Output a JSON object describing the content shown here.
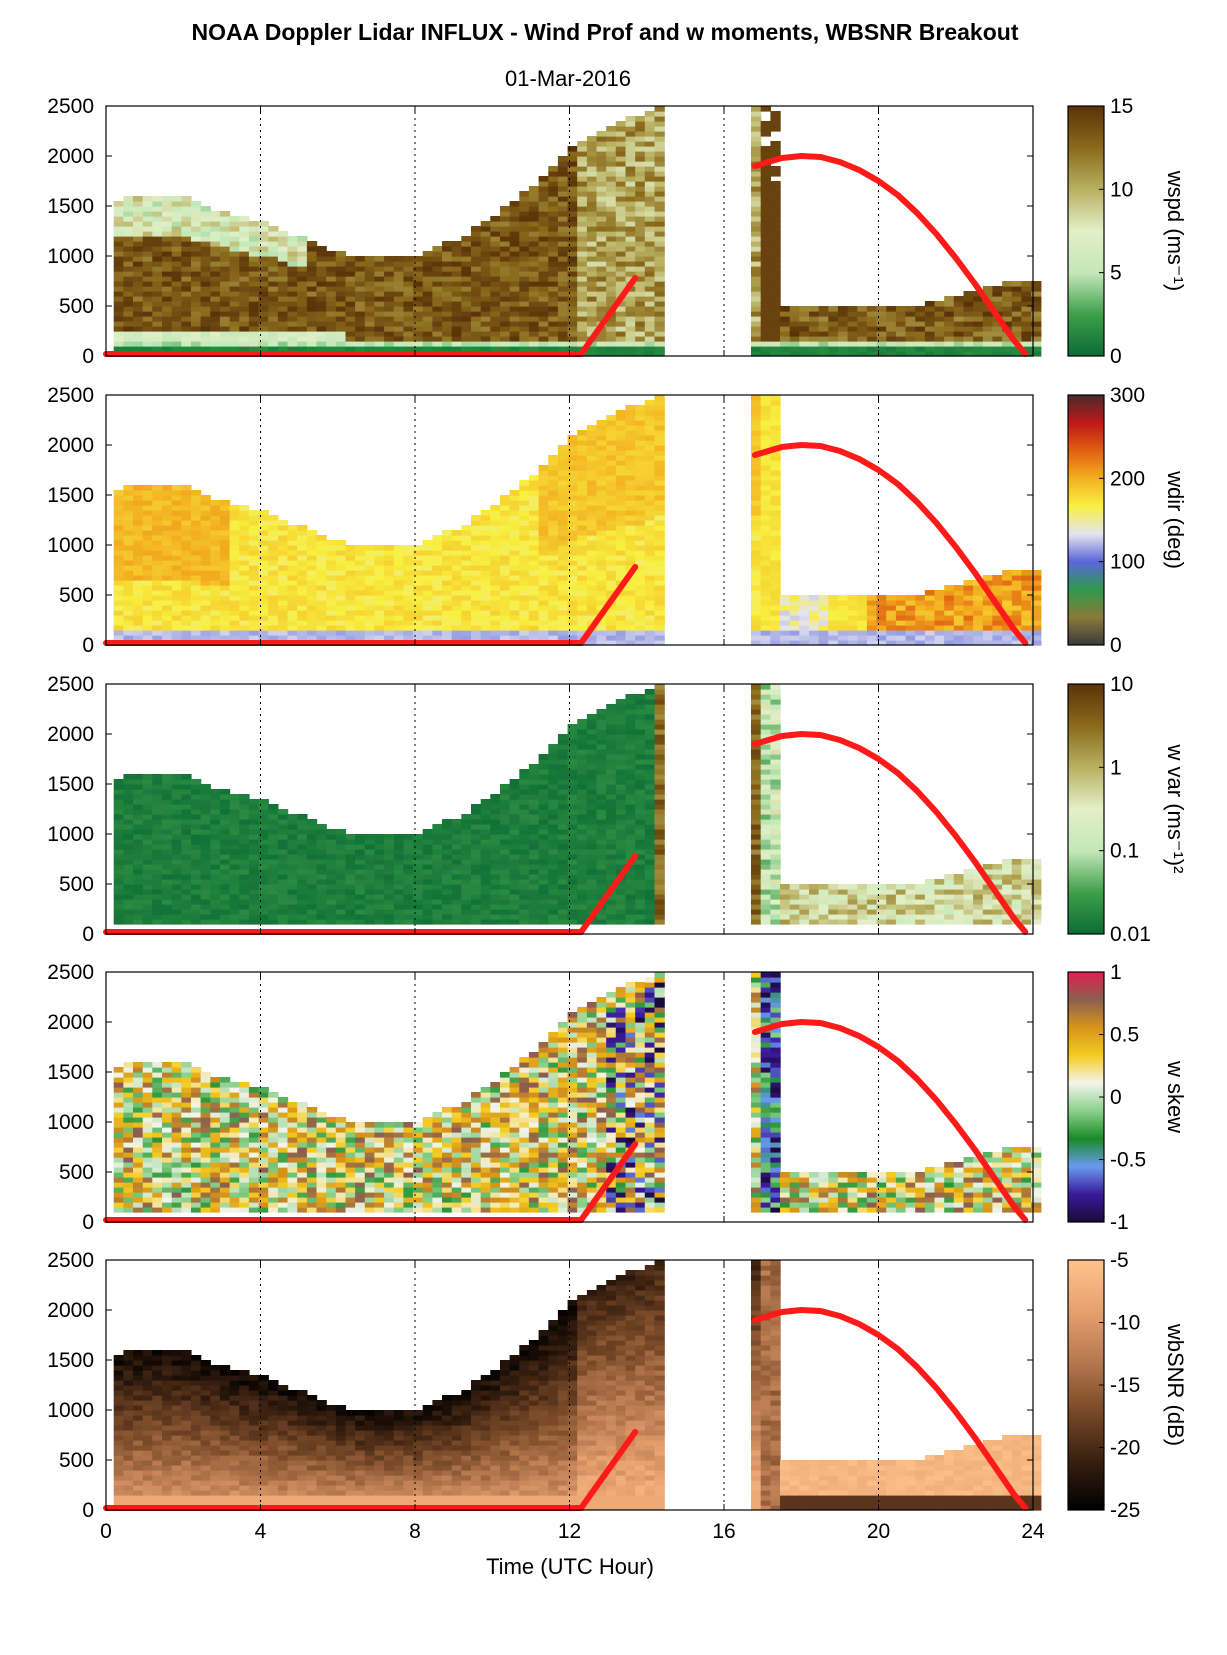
{
  "title": "NOAA Doppler Lidar INFLUX - Wind Prof and w moments, WBSNR Breakout",
  "subtitle": "01-Mar-2016",
  "xlabel": "Time (UTC Hour)",
  "colors": {
    "boundary_line": "#ff1a1a"
  },
  "chart_data": [
    {
      "type": "heatmap",
      "variable": "wspd",
      "ylabel": "",
      "colorbar_label": "wspd (ms⁻¹)",
      "colorbar_ticks": [
        "0",
        "5",
        "10",
        "15"
      ],
      "colorbar_stops": [
        "#0b6b35",
        "#3ea04a",
        "#c4e8b8",
        "#e2efc8",
        "#b9b061",
        "#8a6a1c",
        "#5a3208"
      ],
      "xlim": [
        0,
        24
      ],
      "ylim": [
        0,
        2500
      ],
      "xticks": [
        "0",
        "4",
        "8",
        "12",
        "16",
        "20",
        "24"
      ],
      "yticks": [
        "0",
        "500",
        "1000",
        "1500",
        "2000",
        "2500"
      ],
      "grid": "vertical dotted at 4, 8, 12, 16, 20, 24"
    },
    {
      "type": "heatmap",
      "variable": "wdir",
      "ylabel": "",
      "colorbar_label": "wdir (deg)",
      "colorbar_ticks": [
        "0",
        "100",
        "200",
        "300"
      ],
      "colorbar_stops": [
        "#3a3a3a",
        "#8a7a3a",
        "#2e9a4a",
        "#5a66d8",
        "#e4e4f0",
        "#f8f040",
        "#f3b020",
        "#e06010",
        "#c01818",
        "#4a2a2a"
      ],
      "xlim": [
        0,
        24
      ],
      "ylim": [
        0,
        2500
      ],
      "xticks": [
        "0",
        "4",
        "8",
        "12",
        "16",
        "20",
        "24"
      ],
      "yticks": [
        "0",
        "500",
        "1000",
        "1500",
        "2000",
        "2500"
      ],
      "grid": "vertical dotted at 4, 8, 12, 16, 20, 24"
    },
    {
      "type": "heatmap",
      "variable": "w var",
      "ylabel": "",
      "colorbar_label": "w var (ms⁻¹)²",
      "colorbar_ticks": [
        "0.01",
        "0.1",
        "1",
        "10"
      ],
      "colorbar_stops": [
        "#0b6b35",
        "#3ea04a",
        "#c4e8b8",
        "#e2efc8",
        "#b9b061",
        "#8a6a1c",
        "#5a3208"
      ],
      "xlim": [
        0,
        24
      ],
      "ylim": [
        0,
        2500
      ],
      "xticks": [
        "0",
        "4",
        "8",
        "12",
        "16",
        "20",
        "24"
      ],
      "yticks": [
        "0",
        "500",
        "1000",
        "1500",
        "2000",
        "2500"
      ],
      "grid": "vertical dotted at 4, 8, 12, 16, 20, 24"
    },
    {
      "type": "heatmap",
      "variable": "w skew",
      "ylabel": "",
      "colorbar_label": "w skew",
      "colorbar_ticks": [
        "-1",
        "-0.5",
        "0",
        "0.5",
        "1"
      ],
      "colorbar_stops": [
        "#1a0a3a",
        "#3a1a9a",
        "#6a9af0",
        "#1a8a2a",
        "#8ad08a",
        "#f4f4ec",
        "#f4cc20",
        "#d8941a",
        "#8a6050",
        "#e02050"
      ],
      "xlim": [
        0,
        24
      ],
      "ylim": [
        0,
        2500
      ],
      "xticks": [
        "0",
        "4",
        "8",
        "12",
        "16",
        "20",
        "24"
      ],
      "yticks": [
        "0",
        "500",
        "1000",
        "1500",
        "2000",
        "2500"
      ],
      "grid": "vertical dotted at 4, 8, 12, 16, 20, 24"
    },
    {
      "type": "heatmap",
      "variable": "wbSNR",
      "ylabel": "",
      "colorbar_label": "wbSNR (dB)",
      "colorbar_ticks": [
        "-25",
        "-20",
        "-15",
        "-10",
        "-5"
      ],
      "colorbar_stops": [
        "#000000",
        "#3a2010",
        "#7a4a28",
        "#b87a50",
        "#e8a070",
        "#ffc48a"
      ],
      "xlim": [
        0,
        24
      ],
      "ylim": [
        0,
        2500
      ],
      "xticks": [
        "0",
        "4",
        "8",
        "12",
        "16",
        "20",
        "24"
      ],
      "yticks": [
        "0",
        "500",
        "1000",
        "1500",
        "2000",
        "2500"
      ],
      "grid": "vertical dotted at 4, 8, 12, 16, 20, 24"
    }
  ],
  "boundary_layer_line": {
    "x": [
      0,
      12.3,
      13.7,
      16.8,
      17.5,
      18.0,
      18.5,
      19.0,
      19.5,
      20.0,
      20.5,
      21.0,
      21.5,
      22.0,
      22.5,
      23.0,
      23.5,
      23.8
    ],
    "y": [
      20,
      20,
      780,
      1900,
      1980,
      2000,
      1990,
      1940,
      1860,
      1750,
      1610,
      1430,
      1220,
      980,
      720,
      440,
      160,
      20
    ]
  },
  "data_coverage": {
    "gap_start": 14.2,
    "gap_end": 16.7,
    "top_profile_x": [
      0.2,
      1,
      2,
      3,
      4,
      5,
      6,
      7,
      8,
      9,
      10,
      11,
      12,
      13,
      14.2
    ],
    "top_profile_y": [
      1550,
      1600,
      1550,
      1400,
      1300,
      1150,
      1000,
      1000,
      1000,
      1150,
      1400,
      1700,
      2100,
      2300,
      2450
    ],
    "top_profile_late_x": [
      16.7,
      17.3,
      17.4,
      18,
      19,
      20,
      21,
      22,
      23,
      23.8
    ],
    "top_profile_late_y": [
      2500,
      2450,
      500,
      500,
      500,
      500,
      500,
      600,
      700,
      750
    ]
  }
}
